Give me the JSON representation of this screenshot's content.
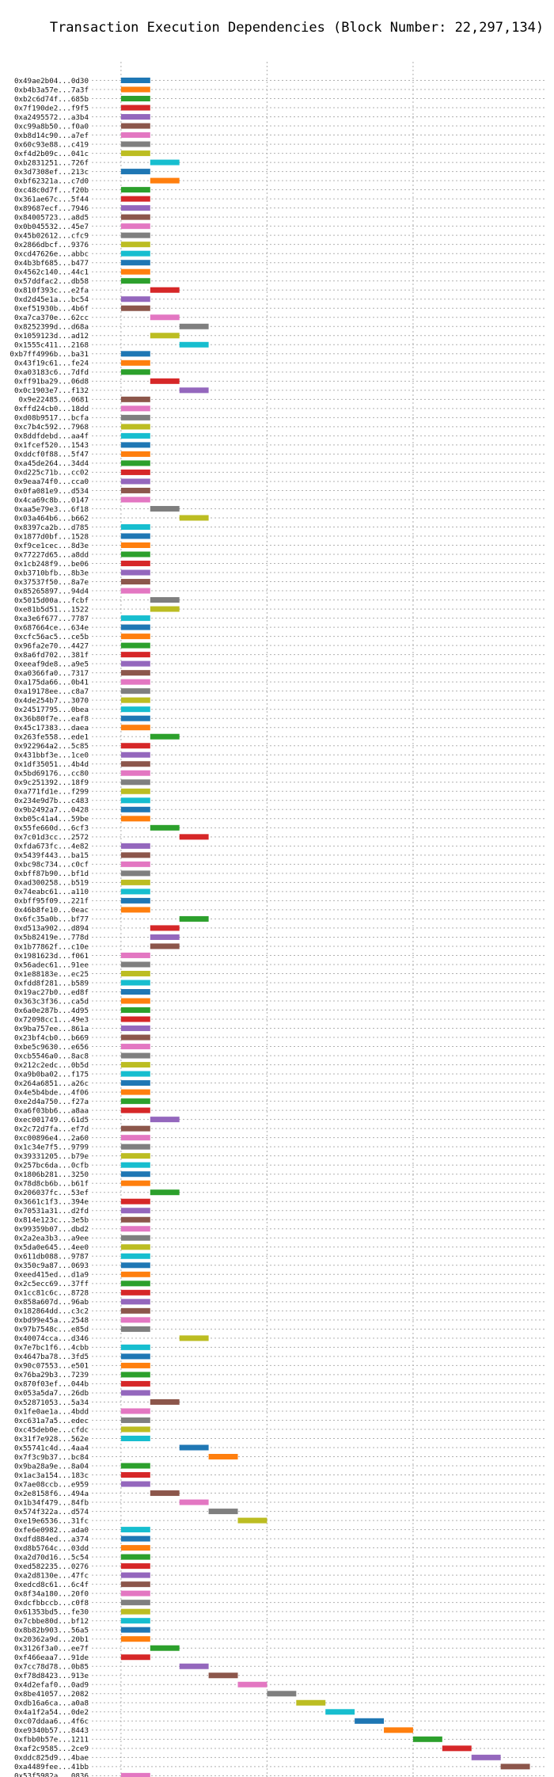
{
  "chart_data": {
    "type": "bar",
    "orientation": "horizontal",
    "title": "Transaction Execution Dependencies (Block Number: 22,297,134)",
    "xlabel": "",
    "ylabel": "",
    "xlim": [
      -1,
      14.5
    ],
    "xticks": [
      0,
      5,
      10
    ],
    "grid": true,
    "palette": [
      "#1f77b4",
      "#ff7f0e",
      "#2ca02c",
      "#d62728",
      "#9467bd",
      "#8c564b",
      "#e377c2",
      "#7f7f7f",
      "#bcbd22",
      "#17becf"
    ],
    "bars": [
      {
        "tx": "0x49ae2b04...0d30",
        "start": 0
      },
      {
        "tx": "0xb4b3a57e...7a3f",
        "start": 0
      },
      {
        "tx": "0xb2c6d74f...685b",
        "start": 0
      },
      {
        "tx": "0x7f190de2...f9f5",
        "start": 0
      },
      {
        "tx": "0xa2495572...a3b4",
        "start": 0
      },
      {
        "tx": "0xc99a8b50...f0a0",
        "start": 0
      },
      {
        "tx": "0xb8d14c90...a7ef",
        "start": 0
      },
      {
        "tx": "0x60c93e88...c419",
        "start": 0
      },
      {
        "tx": "0xf4d2b09c...041c",
        "start": 0
      },
      {
        "tx": "0xb2831251...726f",
        "start": 1
      },
      {
        "tx": "0x3d7308ef...213c",
        "start": 0
      },
      {
        "tx": "0xbf62321a...c7d0",
        "start": 1
      },
      {
        "tx": "0xc48c0d7f...f20b",
        "start": 0
      },
      {
        "tx": "0x361ae67c...5f44",
        "start": 0
      },
      {
        "tx": "0x89687ecf...7946",
        "start": 0
      },
      {
        "tx": "0x84005723...a8d5",
        "start": 0
      },
      {
        "tx": "0x0b045532...45e7",
        "start": 0
      },
      {
        "tx": "0x45b02612...cfc9",
        "start": 0
      },
      {
        "tx": "0x2866dbcf...9376",
        "start": 0
      },
      {
        "tx": "0xcd47626e...abbc",
        "start": 0
      },
      {
        "tx": "0x4b3bf685...b477",
        "start": 0
      },
      {
        "tx": "0x4562c140...44c1",
        "start": 0
      },
      {
        "tx": "0x57ddfac2...db58",
        "start": 0
      },
      {
        "tx": "0x810f393c...e2fa",
        "start": 1
      },
      {
        "tx": "0xd2d45e1a...bc54",
        "start": 0
      },
      {
        "tx": "0xef51930b...4b6f",
        "start": 0
      },
      {
        "tx": "0xa7ca370e...62cc",
        "start": 1
      },
      {
        "tx": "0x8252399d...d68a",
        "start": 2
      },
      {
        "tx": "0x1059123d...ad12",
        "start": 1
      },
      {
        "tx": "0x1555c411...2168",
        "start": 2
      },
      {
        "tx": "0xb7ff4996b...ba31",
        "start": 0
      },
      {
        "tx": "0x43f19c61...fe24",
        "start": 0
      },
      {
        "tx": "0xa03183c6...7dfd",
        "start": 0
      },
      {
        "tx": "0xff91ba29...06d8",
        "start": 1
      },
      {
        "tx": "0x0c1903e7...f132",
        "start": 2
      },
      {
        "tx": "0x9e22485...0681",
        "start": 0
      },
      {
        "tx": "0xffd24cb0...18dd",
        "start": 0
      },
      {
        "tx": "0xd08b9517...bcfa",
        "start": 0
      },
      {
        "tx": "0xc7b4c592...7968",
        "start": 0
      },
      {
        "tx": "0x8ddfdebd...aa4f",
        "start": 0
      },
      {
        "tx": "0x1fcef520...1543",
        "start": 0
      },
      {
        "tx": "0xddcf0f88...5f47",
        "start": 0
      },
      {
        "tx": "0xa45de264...34d4",
        "start": 0
      },
      {
        "tx": "0xd225c71b...cc02",
        "start": 0
      },
      {
        "tx": "0x9eaa74f0...cca0",
        "start": 0
      },
      {
        "tx": "0x0fa081e9...d534",
        "start": 0
      },
      {
        "tx": "0x4ca69c8b...0147",
        "start": 0
      },
      {
        "tx": "0xaa5e79e3...6f18",
        "start": 1
      },
      {
        "tx": "0x03a464b6...b662",
        "start": 2
      },
      {
        "tx": "0x8397ca2b...d785",
        "start": 0
      },
      {
        "tx": "0x1877d0bf...1528",
        "start": 0
      },
      {
        "tx": "0xf9ce1cec...8d3e",
        "start": 0
      },
      {
        "tx": "0x77227d65...a8dd",
        "start": 0
      },
      {
        "tx": "0x1cb248f9...be06",
        "start": 0
      },
      {
        "tx": "0xb3710bfb...8b3e",
        "start": 0
      },
      {
        "tx": "0x37537f50...8a7e",
        "start": 0
      },
      {
        "tx": "0x85265897...94d4",
        "start": 0
      },
      {
        "tx": "0x5015d00a...fcbf",
        "start": 1
      },
      {
        "tx": "0xe81b5d51...1522",
        "start": 1
      },
      {
        "tx": "0xa3e6f677...7787",
        "start": 0
      },
      {
        "tx": "0x687664ce...634e",
        "start": 0
      },
      {
        "tx": "0xcfc56ac5...ce5b",
        "start": 0
      },
      {
        "tx": "0x96fa2e70...4427",
        "start": 0
      },
      {
        "tx": "0x8a6fd702...381f",
        "start": 0
      },
      {
        "tx": "0xeeaf9de8...a9e5",
        "start": 0
      },
      {
        "tx": "0xa0366fa0...7317",
        "start": 0
      },
      {
        "tx": "0xa175da66...0b41",
        "start": 0
      },
      {
        "tx": "0xa19178ee...c8a7",
        "start": 0
      },
      {
        "tx": "0x4de254b7...3070",
        "start": 0
      },
      {
        "tx": "0x24517795...0bea",
        "start": 0
      },
      {
        "tx": "0x36b80f7e...eaf8",
        "start": 0
      },
      {
        "tx": "0x45c17383...daea",
        "start": 0
      },
      {
        "tx": "0x263fe558...ede1",
        "start": 1
      },
      {
        "tx": "0x922964a2...5c85",
        "start": 0
      },
      {
        "tx": "0x431bbf3e...1ce0",
        "start": 0
      },
      {
        "tx": "0x1df35051...4b4d",
        "start": 0
      },
      {
        "tx": "0x5bd69176...cc80",
        "start": 0
      },
      {
        "tx": "0x9c251392...18f9",
        "start": 0
      },
      {
        "tx": "0xa771fd1e...f299",
        "start": 0
      },
      {
        "tx": "0x234e9d7b...c483",
        "start": 0
      },
      {
        "tx": "0x9b2492a7...0428",
        "start": 0
      },
      {
        "tx": "0xb05c41a4...59be",
        "start": 0
      },
      {
        "tx": "0x55fe660d...6cf3",
        "start": 1
      },
      {
        "tx": "0x7c01d3cc...2572",
        "start": 2
      },
      {
        "tx": "0xfda673fc...4e82",
        "start": 0
      },
      {
        "tx": "0x5439f443...ba15",
        "start": 0
      },
      {
        "tx": "0xbc98c734...c0cf",
        "start": 0
      },
      {
        "tx": "0xbff87b90...bf1d",
        "start": 0
      },
      {
        "tx": "0xad300258...b519",
        "start": 0
      },
      {
        "tx": "0x74eabc61...a110",
        "start": 0
      },
      {
        "tx": "0xbff95f09...221f",
        "start": 0
      },
      {
        "tx": "0x46b8fe10...0eac",
        "start": 0
      },
      {
        "tx": "0x6fc35a0b...bf77",
        "start": 2
      },
      {
        "tx": "0xd513a902...d894",
        "start": 1
      },
      {
        "tx": "0x5b82419e...778d",
        "start": 1
      },
      {
        "tx": "0x1b77862f...c10e",
        "start": 1
      },
      {
        "tx": "0x1981623d...f061",
        "start": 0
      },
      {
        "tx": "0x56adec61...91ee",
        "start": 0
      },
      {
        "tx": "0x1e88183e...ec25",
        "start": 0
      },
      {
        "tx": "0xfdd8f281...b589",
        "start": 0
      },
      {
        "tx": "0x19ac27b0...ed8f",
        "start": 0
      },
      {
        "tx": "0x363c3f36...ca5d",
        "start": 0
      },
      {
        "tx": "0x6a0e287b...4d95",
        "start": 0
      },
      {
        "tx": "0x72098cc1...49e3",
        "start": 0
      },
      {
        "tx": "0x9ba757ee...861a",
        "start": 0
      },
      {
        "tx": "0x23bf4cb0...b669",
        "start": 0
      },
      {
        "tx": "0xbe5c9630...e656",
        "start": 0
      },
      {
        "tx": "0xcb5546a0...8ac8",
        "start": 0
      },
      {
        "tx": "0x212c2edc...0b5d",
        "start": 0
      },
      {
        "tx": "0xa9b0ba02...f175",
        "start": 0
      },
      {
        "tx": "0x264a6851...a26c",
        "start": 0
      },
      {
        "tx": "0x4e5b4bde...4f06",
        "start": 0
      },
      {
        "tx": "0xe2d4a750...f27a",
        "start": 0
      },
      {
        "tx": "0xa6f03bb6...a8aa",
        "start": 0
      },
      {
        "tx": "0xec001749...61d5",
        "start": 1
      },
      {
        "tx": "0x2c72d7fa...ef7d",
        "start": 0
      },
      {
        "tx": "0xc00896e4...2a60",
        "start": 0
      },
      {
        "tx": "0x1c34e7f5...9799",
        "start": 0
      },
      {
        "tx": "0x39331205...b79e",
        "start": 0
      },
      {
        "tx": "0x257bc6da...0cfb",
        "start": 0
      },
      {
        "tx": "0x1806b281...3250",
        "start": 0
      },
      {
        "tx": "0x78d8cb6b...b61f",
        "start": 0
      },
      {
        "tx": "0x206037fc...53ef",
        "start": 1
      },
      {
        "tx": "0x3661c1f3...394e",
        "start": 0
      },
      {
        "tx": "0x70531a31...d2fd",
        "start": 0
      },
      {
        "tx": "0x814e123c...3e5b",
        "start": 0
      },
      {
        "tx": "0x99359b07...dbd2",
        "start": 0
      },
      {
        "tx": "0x2a2ea3b3...a9ee",
        "start": 0
      },
      {
        "tx": "0x5da0e645...4ee0",
        "start": 0
      },
      {
        "tx": "0x611db088...9787",
        "start": 0
      },
      {
        "tx": "0x350c9a87...0693",
        "start": 0
      },
      {
        "tx": "0xeed415ed...d1a9",
        "start": 0
      },
      {
        "tx": "0x2c5ecc69...37ff",
        "start": 0
      },
      {
        "tx": "0x1cc81c6c...8728",
        "start": 0
      },
      {
        "tx": "0x858a607d...96ab",
        "start": 0
      },
      {
        "tx": "0x182864dd...c3c2",
        "start": 0
      },
      {
        "tx": "0xbd99e45a...2548",
        "start": 0
      },
      {
        "tx": "0x97b7548c...e85d",
        "start": 0
      },
      {
        "tx": "0x40074cca...d346",
        "start": 2
      },
      {
        "tx": "0x7e7bc1f6...4cbb",
        "start": 0
      },
      {
        "tx": "0x4647ba78...3fd5",
        "start": 0
      },
      {
        "tx": "0x90c07553...e501",
        "start": 0
      },
      {
        "tx": "0x76ba29b3...7239",
        "start": 0
      },
      {
        "tx": "0x870f03ef...044b",
        "start": 0
      },
      {
        "tx": "0x053a5da7...26db",
        "start": 0
      },
      {
        "tx": "0x52871053...5a34",
        "start": 1
      },
      {
        "tx": "0x1fe0ae1a...4bdd",
        "start": 0
      },
      {
        "tx": "0xc631a7a5...edec",
        "start": 0
      },
      {
        "tx": "0xc45deb0e...cfdc",
        "start": 0
      },
      {
        "tx": "0x31f7e928...562e",
        "start": 0
      },
      {
        "tx": "0x55741c4d...4aa4",
        "start": 2
      },
      {
        "tx": "0x7f3c9b37...bc84",
        "start": 3
      },
      {
        "tx": "0x9ba28a9e...8a04",
        "start": 0
      },
      {
        "tx": "0x1ac3a154...183c",
        "start": 0
      },
      {
        "tx": "0x7ae08ccb...e959",
        "start": 0
      },
      {
        "tx": "0x2e8158f6...494a",
        "start": 1
      },
      {
        "tx": "0x1b34f479...84fb",
        "start": 2
      },
      {
        "tx": "0x574f322a...d574",
        "start": 3
      },
      {
        "tx": "0xe19e6536...31fc",
        "start": 4
      },
      {
        "tx": "0xfe6e0982...ada0",
        "start": 0
      },
      {
        "tx": "0xdfd884ed...a374",
        "start": 0
      },
      {
        "tx": "0xd8b5764c...03dd",
        "start": 0
      },
      {
        "tx": "0xa2d70d16...5c54",
        "start": 0
      },
      {
        "tx": "0xed582235...0276",
        "start": 0
      },
      {
        "tx": "0xa2d8130e...47fc",
        "start": 0
      },
      {
        "tx": "0xedcd8c61...6c4f",
        "start": 0
      },
      {
        "tx": "0x8f34a180...20f0",
        "start": 0
      },
      {
        "tx": "0xdcfbbccb...c0f8",
        "start": 0
      },
      {
        "tx": "0x61353bd5...fe30",
        "start": 0
      },
      {
        "tx": "0x7cbbe80d...bf12",
        "start": 0
      },
      {
        "tx": "0x8b82b903...56a5",
        "start": 0
      },
      {
        "tx": "0x20362a9d...20b1",
        "start": 0
      },
      {
        "tx": "0x3126f3a0...ee7f",
        "start": 1
      },
      {
        "tx": "0xf466eaa7...91de",
        "start": 0
      },
      {
        "tx": "0x7cc78d78...0b85",
        "start": 2
      },
      {
        "tx": "0xf78d8423...913e",
        "start": 3
      },
      {
        "tx": "0x4d2efaf0...0ad9",
        "start": 4
      },
      {
        "tx": "0x8be41057...2082",
        "start": 5
      },
      {
        "tx": "0xdb16a6ca...a0a8",
        "start": 6
      },
      {
        "tx": "0x4a1f2a54...0de2",
        "start": 7
      },
      {
        "tx": "0xc07ddaa6...4f6c",
        "start": 8
      },
      {
        "tx": "0xe9340b57...8443",
        "start": 9
      },
      {
        "tx": "0xfbb0b57e...1211",
        "start": 10
      },
      {
        "tx": "0xaf2c9585...2ce9",
        "start": 11
      },
      {
        "tx": "0xddc825d9...4bae",
        "start": 12
      },
      {
        "tx": "0xa4489fee...41bb",
        "start": 13
      },
      {
        "tx": "0x53f5982a...0836",
        "start": 0
      }
    ]
  }
}
